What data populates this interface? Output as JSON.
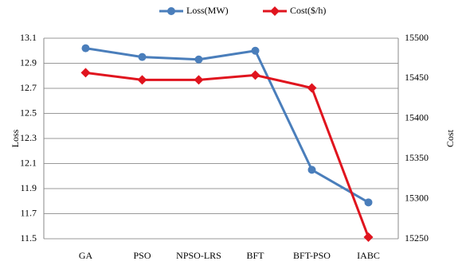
{
  "chart_data": {
    "type": "line",
    "categories": [
      "GA",
      "PSO",
      "NPSO-LRS",
      "BFT",
      "BFT-PSO",
      "IABC"
    ],
    "series": [
      {
        "name": "Loss(MW)",
        "color": "#4a7ebb",
        "values": [
          13.02,
          12.95,
          12.93,
          13.0,
          12.05,
          11.79
        ]
      },
      {
        "name": "Cost($/h)",
        "color": "#e0141e",
        "axis": "y2",
        "values": [
          15457,
          15448,
          15448,
          15454,
          15438,
          15252
        ]
      }
    ],
    "ylabel": "Loss",
    "y2label": "Cost",
    "ylim": [
      11.5,
      13.1
    ],
    "yticks": [
      11.5,
      11.7,
      11.9,
      12.1,
      12.3,
      12.5,
      12.7,
      12.9,
      13.1
    ],
    "y2lim": [
      15250,
      15500
    ],
    "y2ticks": [
      15250,
      15300,
      15350,
      15400,
      15450,
      15500
    ],
    "grid": true,
    "legend": "top"
  }
}
